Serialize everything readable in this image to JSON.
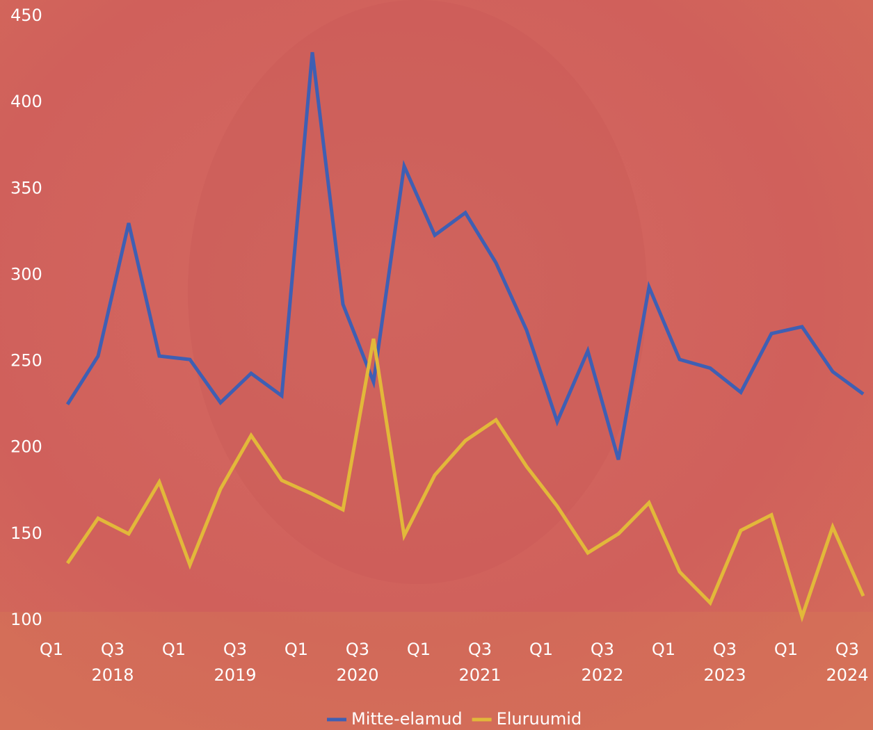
{
  "chart_data": {
    "type": "line",
    "categories": [
      "Q1",
      null,
      "Q3",
      null,
      "Q1",
      null,
      "Q3",
      null,
      "Q1",
      null,
      "Q3",
      null,
      "Q1",
      null,
      "Q3",
      null,
      "Q1",
      null,
      "Q3",
      null,
      "Q1",
      null,
      "Q3",
      null,
      "Q1",
      null,
      "Q3"
    ],
    "category_groups": [
      "2018",
      "2019",
      "2020",
      "2021",
      "2022",
      "2023",
      "2024"
    ],
    "series": [
      {
        "name": "Mitte-elamud",
        "color": "#3f5fb3",
        "values": [
          225,
          253,
          330,
          253,
          251,
          226,
          243,
          230,
          429,
          283,
          238,
          363,
          323,
          336,
          307,
          268,
          215,
          256,
          193,
          293,
          251,
          246,
          232,
          266,
          270,
          244,
          231
        ]
      },
      {
        "name": "Eluruumid",
        "color": "#e2b83a",
        "values": [
          133,
          159,
          150,
          180,
          132,
          176,
          207,
          181,
          173,
          164,
          263,
          149,
          184,
          204,
          216,
          189,
          166,
          139,
          150,
          168,
          128,
          110,
          152,
          161,
          102,
          154,
          114
        ]
      }
    ],
    "ylim": [
      100,
      450
    ],
    "yticks": [
      100,
      150,
      200,
      250,
      300,
      350,
      400,
      450
    ],
    "grid": false,
    "legend": "bottom"
  }
}
